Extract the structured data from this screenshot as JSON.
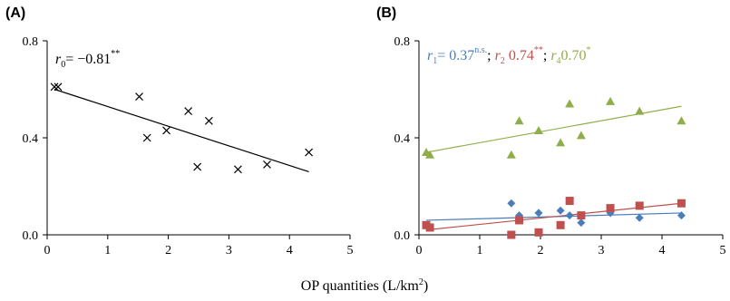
{
  "xlabel_main": "OP quantities (L/km",
  "xlabel_sup": "2",
  "xlabel_close": ")",
  "colors": {
    "blue": "#4A7EBB",
    "red": "#C0504D",
    "green": "#8FAE4A",
    "black": "#000000"
  },
  "chart_data": [
    {
      "panel": "(A)",
      "type": "scatter",
      "xlim": [
        0,
        5
      ],
      "ylim": [
        0,
        0.8
      ],
      "xticks": [
        "0",
        "1",
        "2",
        "3",
        "4",
        "5"
      ],
      "yticks": [
        "0.0",
        "0.4",
        "0.8"
      ],
      "annotations": [
        {
          "r": "r",
          "sub": "0",
          "text": "= −0.81",
          "sup": "**",
          "color": "#000000"
        }
      ],
      "series": [
        {
          "marker": "x",
          "color": "#000000",
          "x": [
            0.12,
            0.18,
            1.52,
            1.65,
            1.97,
            2.33,
            2.48,
            2.67,
            3.15,
            3.63,
            4.32
          ],
          "y": [
            0.61,
            0.61,
            0.57,
            0.4,
            0.43,
            0.51,
            0.28,
            0.47,
            0.27,
            0.29,
            0.34
          ],
          "fit": [
            [
              0.12,
              0.6
            ],
            [
              4.32,
              0.26
            ]
          ]
        }
      ]
    },
    {
      "panel": "(B)",
      "type": "scatter",
      "xlim": [
        0,
        5
      ],
      "ylim": [
        0,
        0.8
      ],
      "xticks": [
        "0",
        "1",
        "2",
        "3",
        "4",
        "5"
      ],
      "yticks": [
        "0.0",
        "0.4",
        "0.8"
      ],
      "annotations": [
        {
          "r": "r",
          "sub": "1",
          "text": "= 0.37",
          "sup": "n.s.",
          "color": "#4A7EBB",
          "sep": "; "
        },
        {
          "r": "r",
          "sub": "2",
          "text": " 0.74",
          "sup": "**",
          "color": "#C0504D",
          "sep": "; "
        },
        {
          "r": "r",
          "sub": "4",
          "text": "0.70",
          "sup": "*",
          "color": "#8FAE4A",
          "sep": ""
        }
      ],
      "series": [
        {
          "marker": "diamond",
          "color": "#4A7EBB",
          "x": [
            0.12,
            0.18,
            1.52,
            1.65,
            1.97,
            2.33,
            2.48,
            2.67,
            3.15,
            3.63,
            4.32
          ],
          "y": [
            0.04,
            0.03,
            0.13,
            0.08,
            0.09,
            0.1,
            0.08,
            0.05,
            0.09,
            0.07,
            0.08
          ],
          "fit": [
            [
              0.12,
              0.06
            ],
            [
              4.32,
              0.09
            ]
          ]
        },
        {
          "marker": "square",
          "color": "#C0504D",
          "x": [
            0.12,
            0.18,
            1.52,
            1.65,
            1.97,
            2.33,
            2.48,
            2.67,
            3.15,
            3.63,
            4.32
          ],
          "y": [
            0.04,
            0.03,
            0.0,
            0.06,
            0.01,
            0.04,
            0.14,
            0.08,
            0.11,
            0.12,
            0.13
          ],
          "fit": [
            [
              0.12,
              0.02
            ],
            [
              4.32,
              0.13
            ]
          ]
        },
        {
          "marker": "triangle",
          "color": "#8FAE4A",
          "x": [
            0.12,
            0.18,
            1.52,
            1.65,
            1.97,
            2.33,
            2.48,
            2.67,
            3.15,
            3.63,
            4.32
          ],
          "y": [
            0.34,
            0.33,
            0.33,
            0.47,
            0.43,
            0.38,
            0.54,
            0.41,
            0.55,
            0.51,
            0.47
          ],
          "fit": [
            [
              0.12,
              0.34
            ],
            [
              4.32,
              0.53
            ]
          ]
        }
      ]
    }
  ]
}
